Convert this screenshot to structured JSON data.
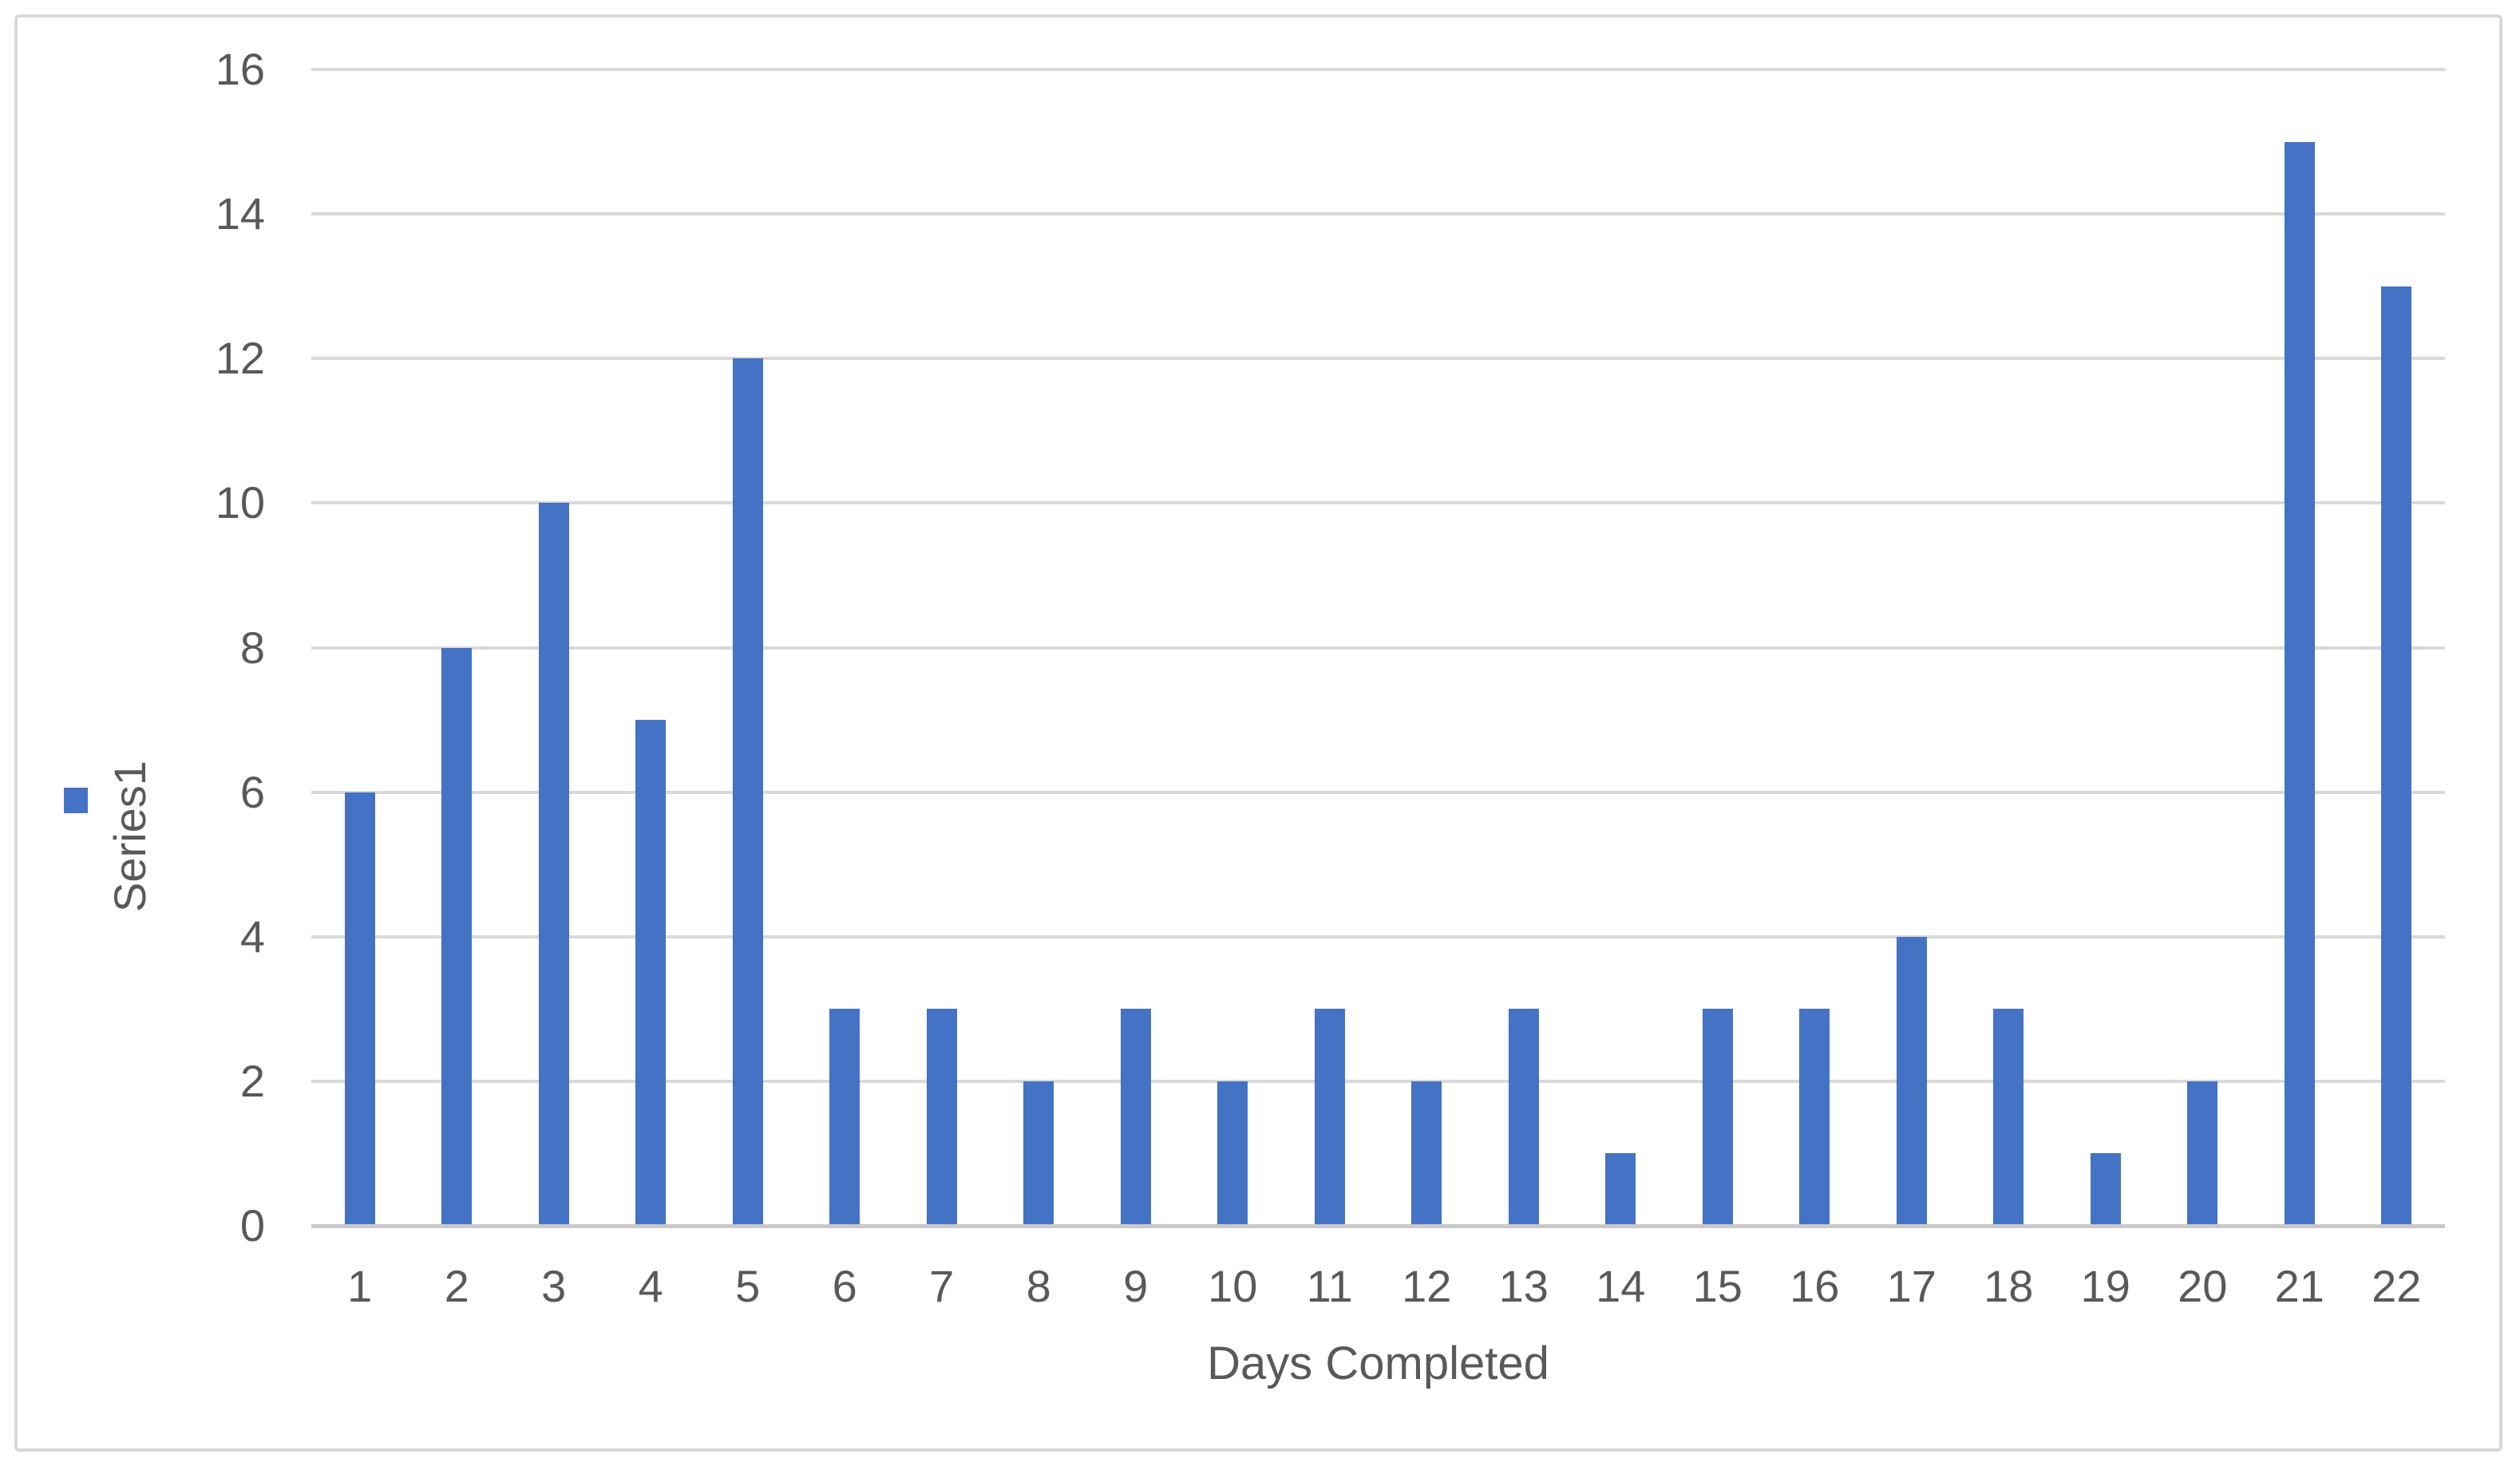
{
  "chart_data": {
    "type": "bar",
    "title": "",
    "categories": [
      "1",
      "2",
      "3",
      "4",
      "5",
      "6",
      "7",
      "8",
      "9",
      "10",
      "11",
      "12",
      "13",
      "14",
      "15",
      "16",
      "17",
      "18",
      "19",
      "20",
      "21",
      "22"
    ],
    "series": [
      {
        "name": "Series1",
        "values": [
          6,
          8,
          10,
          7,
          12,
          3,
          3,
          2,
          3,
          2,
          3,
          2,
          3,
          1,
          3,
          3,
          4,
          3,
          1,
          2,
          15,
          13
        ]
      }
    ],
    "xlabel": "Days Completed",
    "ylabel": "",
    "ylim": [
      0,
      16
    ],
    "yticks": [
      0,
      2,
      4,
      6,
      8,
      10,
      12,
      14,
      16
    ],
    "grid": true,
    "legend": {
      "label": "Series1",
      "position": "left-middle",
      "orientation": "rotated-90-ccw"
    },
    "style": {
      "bar_color": "#4472C4",
      "gridline_color": "#D9D9D9",
      "axis_line_color": "#C9C9C9",
      "text_color": "#595959",
      "frame_border_color": "#D9D9D9",
      "background": "#FFFFFF"
    }
  }
}
